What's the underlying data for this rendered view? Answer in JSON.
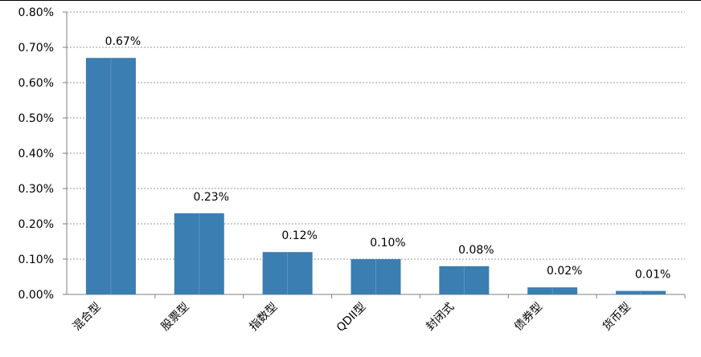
{
  "chart_data": {
    "type": "bar",
    "categories": [
      "混合型",
      "股票型",
      "指数型",
      "QDII型",
      "封闭式",
      "债券型",
      "货币型"
    ],
    "values": [
      0.67,
      0.23,
      0.12,
      0.1,
      0.08,
      0.02,
      0.01
    ],
    "data_labels": [
      "0.67%",
      "0.23%",
      "0.12%",
      "0.10%",
      "0.08%",
      "0.02%",
      "0.01%"
    ],
    "ylim": [
      0,
      0.8
    ],
    "yticks": [
      0,
      0.1,
      0.2,
      0.3,
      0.4,
      0.5,
      0.6,
      0.7,
      0.8
    ],
    "ytick_labels": [
      "0.00%",
      "0.10%",
      "0.20%",
      "0.30%",
      "0.40%",
      "0.50%",
      "0.60%",
      "0.70%",
      "0.80%"
    ],
    "grid": true,
    "bar_color": "#3b7eb1",
    "title": "",
    "xlabel": "",
    "ylabel": ""
  }
}
